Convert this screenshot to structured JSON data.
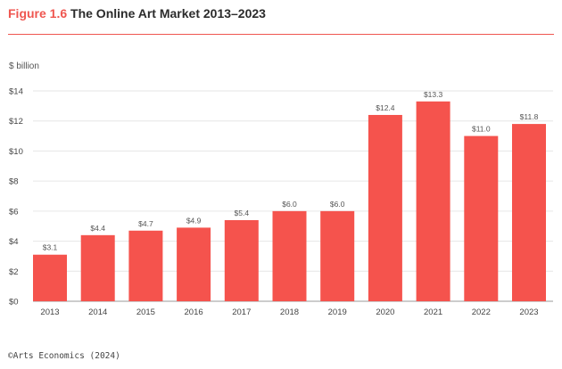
{
  "header": {
    "figure_label": "Figure 1.6",
    "title": "The Online Art Market 2013–2023"
  },
  "source": "©Arts Economics (2024)",
  "colors": {
    "bar": "#f5534d",
    "accent": "#ef5650",
    "grid": "#e6e6e6",
    "axis": "#444444"
  },
  "chart_data": {
    "type": "bar",
    "title": "The Online Art Market 2013–2023",
    "ylabel": "$ billion",
    "xlabel": "",
    "categories": [
      "2013",
      "2014",
      "2015",
      "2016",
      "2017",
      "2018",
      "2019",
      "2020",
      "2021",
      "2022",
      "2023"
    ],
    "values": [
      3.1,
      4.4,
      4.7,
      4.9,
      5.4,
      6.0,
      6.0,
      12.4,
      13.3,
      11.0,
      11.8
    ],
    "value_labels": [
      "$3.1",
      "$4.4",
      "$4.7",
      "$4.9",
      "$5.4",
      "$6.0",
      "$6.0",
      "$12.4",
      "$13.3",
      "$11.0",
      "$11.8"
    ],
    "ylim": [
      0,
      14
    ],
    "y_ticks": [
      0,
      2,
      4,
      6,
      8,
      10,
      12,
      14
    ],
    "y_tick_labels": [
      "$0",
      "$2",
      "$4",
      "$6",
      "$8",
      "$10",
      "$12",
      "$14"
    ],
    "grid": true,
    "legend": "none"
  }
}
